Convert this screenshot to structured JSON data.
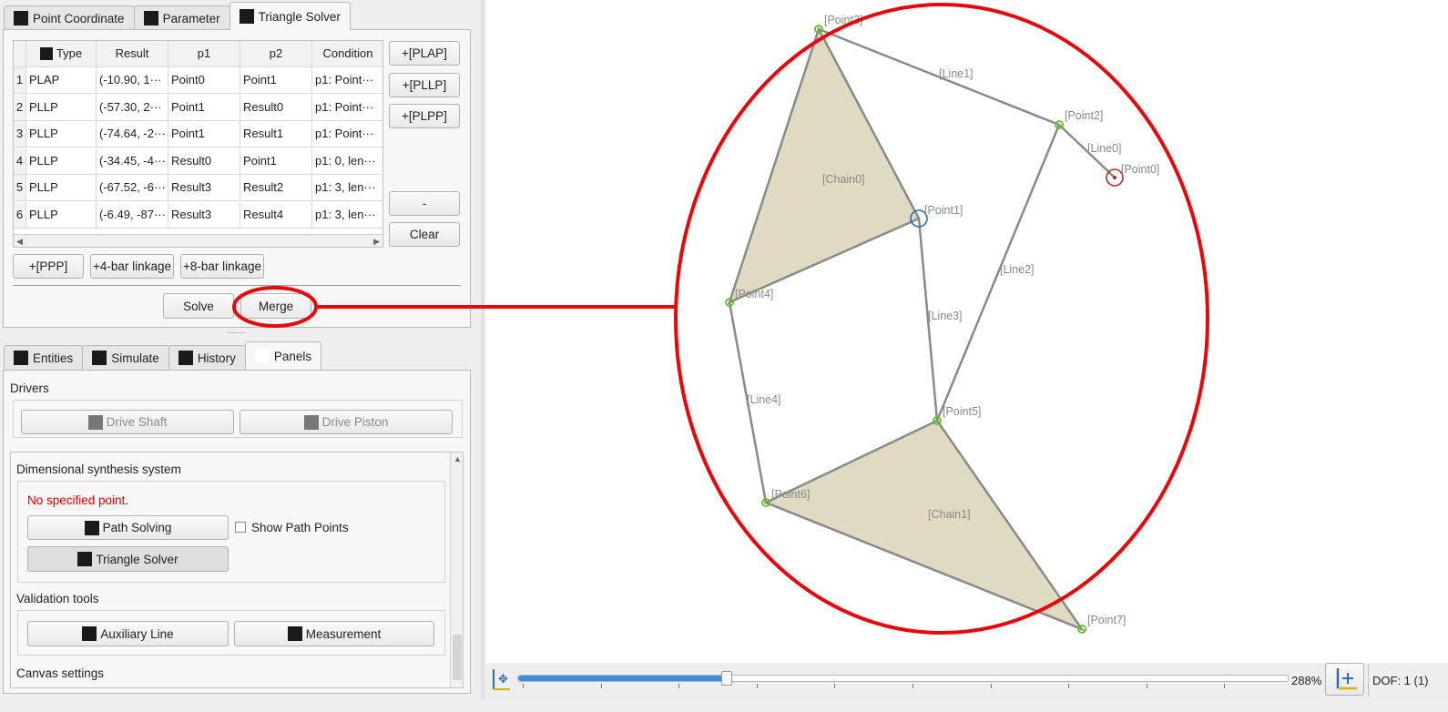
{
  "top_tabs": [
    {
      "label": "Point Coordinate",
      "icon": "point-coordinate-icon"
    },
    {
      "label": "Parameter",
      "icon": "parameter-icon"
    },
    {
      "label": "Triangle Solver",
      "icon": "triangle-solver-icon"
    }
  ],
  "table": {
    "headers": [
      "Type",
      "Result",
      "p1",
      "p2",
      "Condition"
    ],
    "rows": [
      {
        "num": "1",
        "type": "PLAP",
        "result": "(-10.90, 1···",
        "p1": "Point0",
        "p2": "Point1",
        "condition": "p1: Point···"
      },
      {
        "num": "2",
        "type": "PLLP",
        "result": "(-57.30, 2···",
        "p1": "Point1",
        "p2": "Result0",
        "condition": "p1: Point···"
      },
      {
        "num": "3",
        "type": "PLLP",
        "result": "(-74.64, -2···",
        "p1": "Point1",
        "p2": "Result1",
        "condition": "p1: Point···"
      },
      {
        "num": "4",
        "type": "PLLP",
        "result": "(-34.45, -4···",
        "p1": "Result0",
        "p2": "Point1",
        "condition": "p1: 0, len···"
      },
      {
        "num": "5",
        "type": "PLLP",
        "result": "(-67.52, -6···",
        "p1": "Result3",
        "p2": "Result2",
        "condition": "p1: 3, len···"
      },
      {
        "num": "6",
        "type": "PLLP",
        "result": "(-6.49, -87···",
        "p1": "Result3",
        "p2": "Result4",
        "condition": "p1: 3, len···"
      }
    ]
  },
  "side_buttons": {
    "plap": "+[PLAP]",
    "pllp": "+[PLLP]",
    "plpp": "+[PLPP]",
    "minus": "-",
    "clear": "Clear"
  },
  "bottom_buttons": {
    "ppp": "+[PPP]",
    "four_bar": "+4-bar linkage",
    "eight_bar": "+8-bar linkage",
    "solve": "Solve",
    "merge": "Merge"
  },
  "lower_tabs": [
    {
      "label": "Entities",
      "icon": "entities-icon"
    },
    {
      "label": "Simulate",
      "icon": "simulate-icon"
    },
    {
      "label": "History",
      "icon": "history-icon"
    },
    {
      "label": "Panels",
      "icon": "panels-icon"
    }
  ],
  "panels": {
    "drivers_title": "Drivers",
    "drive_shaft": "Drive Shaft",
    "drive_piston": "Drive Piston",
    "synthesis_title": "Dimensional synthesis system",
    "no_point": "No specified point.",
    "path_solving": "Path Solving",
    "show_path_points": "Show Path Points",
    "triangle_solver": "Triangle Solver",
    "validation_title": "Validation tools",
    "auxiliary_line": "Auxiliary Line",
    "measurement": "Measurement",
    "canvas_settings": "Canvas settings"
  },
  "canvas": {
    "points": [
      {
        "label": "[Point0]"
      },
      {
        "label": "[Point1]"
      },
      {
        "label": "[Point2]"
      },
      {
        "label": "[Point3]"
      },
      {
        "label": "[Point4]"
      },
      {
        "label": "[Point5]"
      },
      {
        "label": "[Point6]"
      },
      {
        "label": "[Point7]"
      }
    ],
    "lines": [
      "[Line0]",
      "[Line1]",
      "[Line2]",
      "[Line3]",
      "[Line4]"
    ],
    "chains": [
      "[Chain0]",
      "[Chain1]"
    ],
    "colors": {
      "point": "#5dc41a",
      "chain_fill": "#e0dac0",
      "link": "#8a8a8a",
      "annotation": "#e8070b",
      "ground": "#b32a2a",
      "driver": "#2b6cb3"
    }
  },
  "status": {
    "zoom": "288%",
    "zoom_fraction": 0.27,
    "dof": "DOF: 1 (1)"
  }
}
